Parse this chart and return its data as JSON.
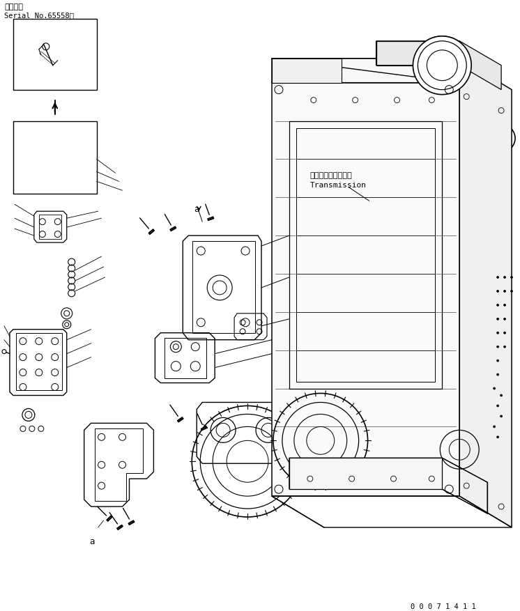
{
  "title_jp": "適用号機",
  "title_serial": "Serial No.65558～",
  "label_transmission_jp": "トランスミッション",
  "label_transmission_en": "Transmission",
  "doc_number": "0 0 0 7 1 4 1 1",
  "bg_color": "#ffffff",
  "line_color": "#000000",
  "fig_width": 7.46,
  "fig_height": 8.78,
  "dpi": 100
}
